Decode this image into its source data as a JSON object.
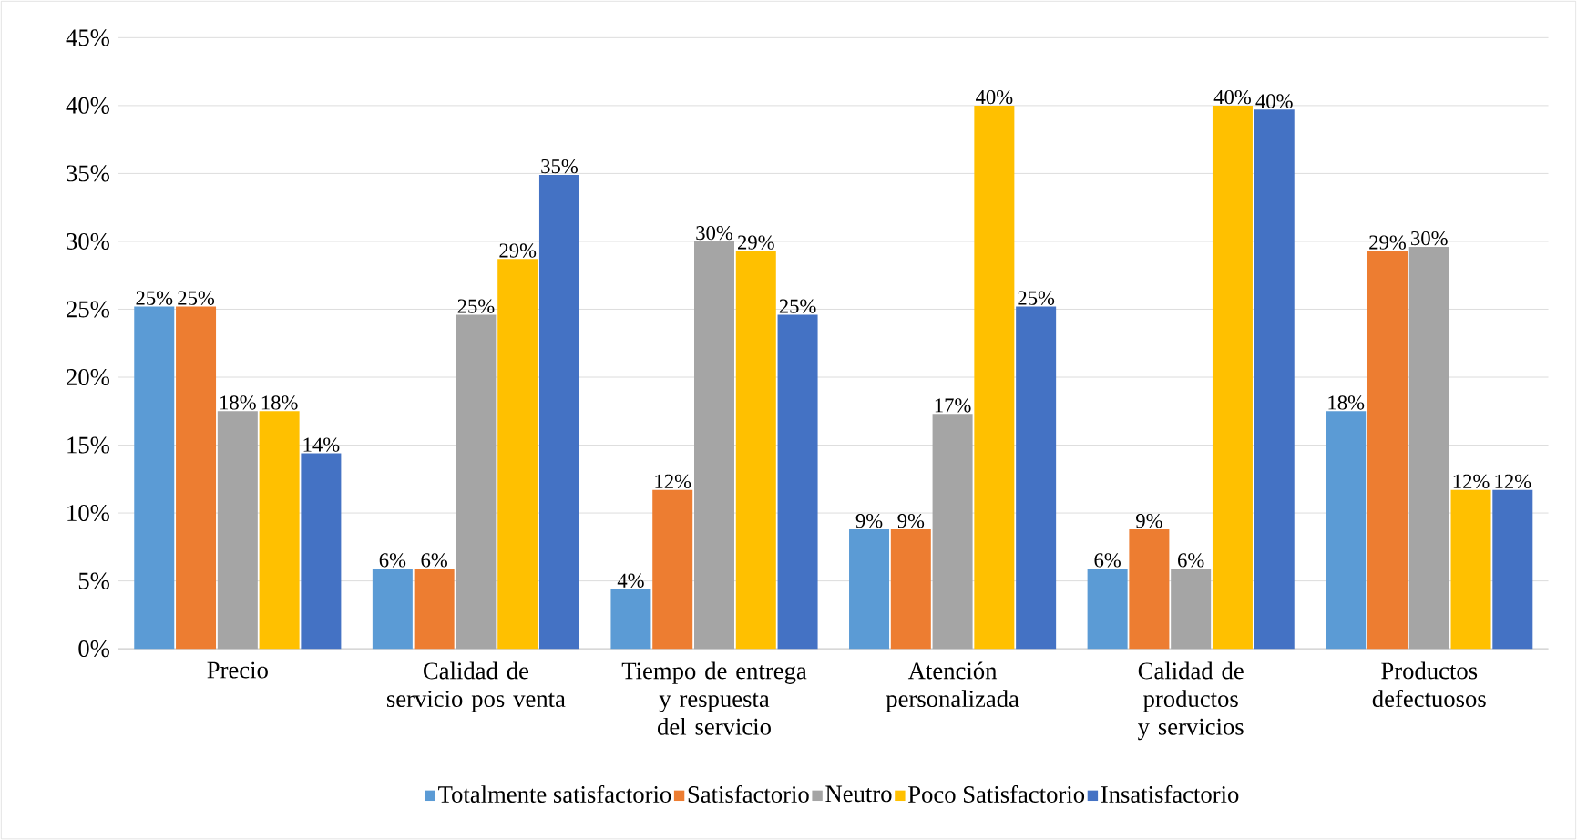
{
  "chart_data": {
    "type": "bar",
    "categories": [
      "Precio",
      "Calidad de servicio pos venta",
      "Tiempo de entrega y respuesta del servicio",
      "Atención personalizada",
      "Calidad de productos y servicios",
      "Productos defectuosos"
    ],
    "series": [
      {
        "name": "Totalmente satisfactorio",
        "color": "#5b9bd5",
        "values": [
          25.2,
          5.9,
          4.4,
          8.8,
          5.9,
          17.5
        ],
        "value_labels": [
          "25%",
          "6%",
          "4%",
          "9%",
          "6%",
          "18%"
        ]
      },
      {
        "name": "Satisfactorio",
        "color": "#ed7d31",
        "values": [
          25.2,
          5.9,
          11.7,
          8.8,
          8.8,
          29.3
        ],
        "value_labels": [
          "25%",
          "6%",
          "12%",
          "9%",
          "9%",
          "29%"
        ]
      },
      {
        "name": "Neutro",
        "color": "#a5a5a5",
        "values": [
          17.5,
          24.6,
          30.0,
          17.3,
          5.9,
          29.6
        ],
        "value_labels": [
          "18%",
          "25%",
          "30%",
          "17%",
          "6%",
          "30%"
        ]
      },
      {
        "name": "Poco Satisfactorio",
        "color": "#ffc000",
        "values": [
          17.5,
          28.7,
          29.3,
          40.0,
          40.0,
          11.7
        ],
        "value_labels": [
          "18%",
          "29%",
          "29%",
          "40%",
          "40%",
          "12%"
        ]
      },
      {
        "name": "Insatisfactorio",
        "color": "#4472c4",
        "values": [
          14.4,
          34.9,
          24.6,
          25.2,
          39.7,
          11.7
        ],
        "value_labels": [
          "14%",
          "35%",
          "25%",
          "25%",
          "40%",
          "12%"
        ]
      }
    ],
    "ylim": [
      0,
      45
    ],
    "yticks": [
      {
        "value": 0,
        "label": "0%"
      },
      {
        "value": 5,
        "label": "5%"
      },
      {
        "value": 10,
        "label": "10%"
      },
      {
        "value": 15,
        "label": "15%"
      },
      {
        "value": 20,
        "label": "20%"
      },
      {
        "value": 25,
        "label": "25%"
      },
      {
        "value": 30,
        "label": "30%"
      },
      {
        "value": 35,
        "label": "35%"
      },
      {
        "value": 40,
        "label": "40%"
      },
      {
        "value": 45,
        "label": "45%"
      }
    ],
    "grid": "y",
    "legend": "bottom"
  }
}
